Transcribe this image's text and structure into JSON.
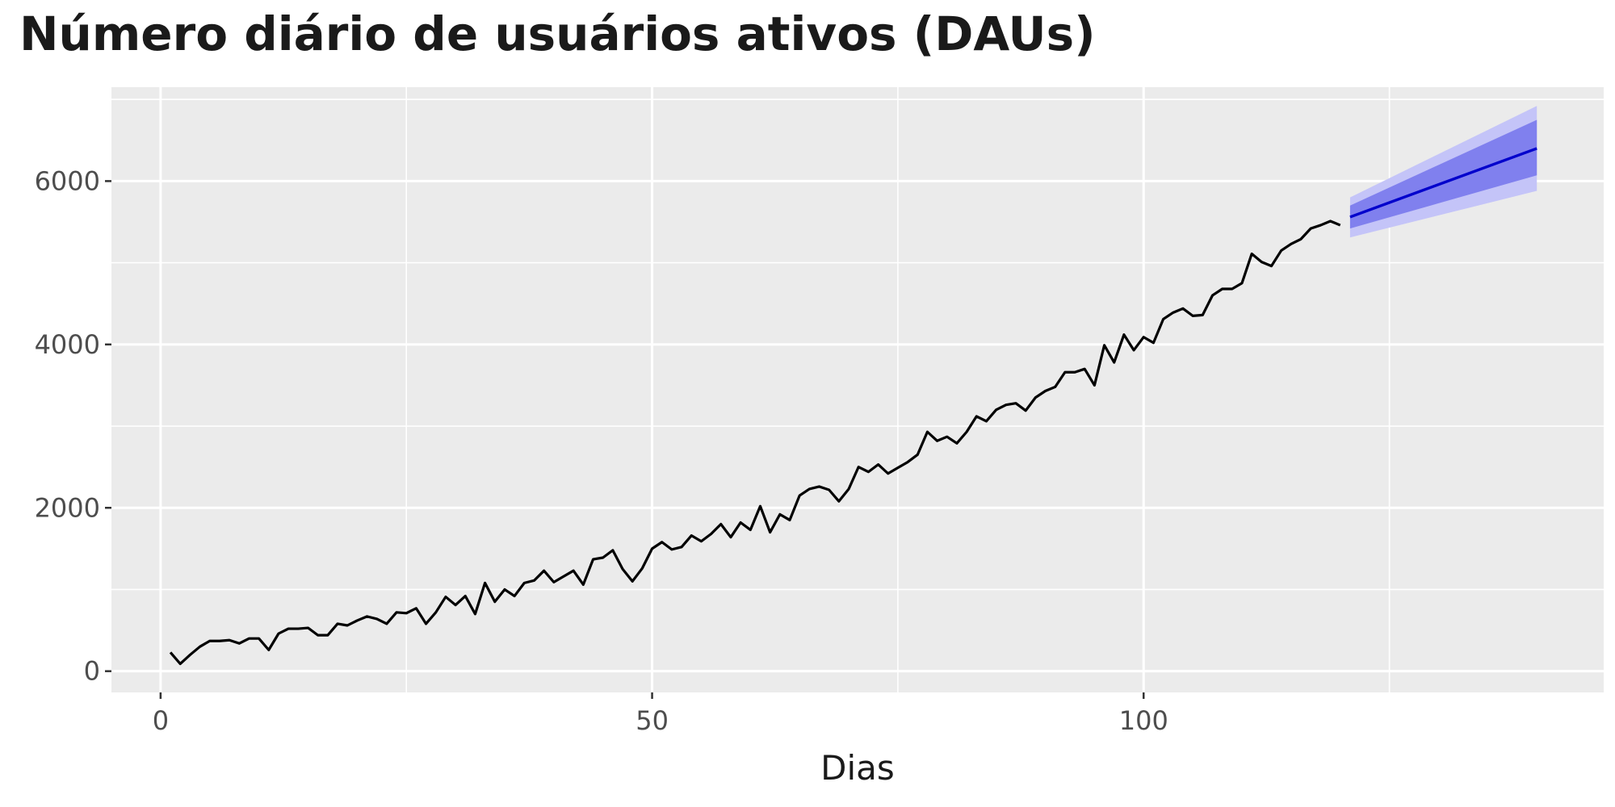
{
  "chart_data": {
    "type": "line",
    "title": "Número diário de usuários ativos (DAUs)",
    "xlabel": "Dias",
    "ylabel": "",
    "xlim": [
      -5.0,
      146.8
    ],
    "ylim": [
      -260,
      7150
    ],
    "x_ticks": [
      0,
      50,
      100
    ],
    "x_tick_labels": [
      "0",
      "50",
      "100"
    ],
    "x_minor_ticks": [
      25,
      75,
      125
    ],
    "y_ticks": [
      0,
      2000,
      4000,
      6000
    ],
    "y_tick_labels": [
      "0",
      "2000",
      "4000",
      "6000"
    ],
    "y_minor_ticks": [
      1000,
      3000,
      5000,
      7000
    ],
    "grid": true,
    "legend": "none",
    "colors": {
      "panel_background": "#ebebeb",
      "grid": "#ffffff",
      "observed_line": "#000000",
      "forecast_line": "#0000cc",
      "band_80": "#8080ee",
      "band_95": "#c4c4f8"
    },
    "series": [
      {
        "type": "line",
        "x": [
          1,
          2,
          3,
          4,
          5,
          6,
          7,
          8,
          9,
          10,
          11,
          12,
          13,
          14,
          15,
          16,
          17,
          18,
          19,
          20,
          21,
          22,
          23,
          24,
          25,
          26,
          27,
          28,
          29,
          30,
          31,
          32,
          33,
          34,
          35,
          36,
          37,
          38,
          39,
          40,
          41,
          42,
          43,
          44,
          45,
          46,
          47,
          48,
          49,
          50,
          51,
          52,
          53,
          54,
          55,
          56,
          57,
          58,
          59,
          60,
          61,
          62,
          63,
          64,
          65,
          66,
          67,
          68,
          69,
          70,
          71,
          72,
          73,
          74,
          75,
          76,
          77,
          78,
          79,
          80,
          81,
          82,
          83,
          84,
          85,
          86,
          87,
          88,
          89,
          90,
          91,
          92,
          93,
          94,
          95,
          96,
          97,
          98,
          99,
          100,
          101,
          102,
          103,
          104,
          105,
          106,
          107,
          108,
          109,
          110,
          111,
          112,
          113,
          114,
          115,
          116,
          117,
          118,
          119,
          120
        ],
        "values": [
          230,
          90,
          200,
          300,
          370,
          370,
          380,
          340,
          400,
          400,
          260,
          460,
          520,
          520,
          530,
          440,
          440,
          580,
          560,
          620,
          670,
          640,
          580,
          720,
          710,
          770,
          580,
          720,
          910,
          810,
          920,
          700,
          1080,
          850,
          1000,
          920,
          1080,
          1110,
          1230,
          1090,
          1160,
          1230,
          1060,
          1370,
          1390,
          1480,
          1250,
          1100,
          1260,
          1500,
          1580,
          1490,
          1520,
          1660,
          1590,
          1680,
          1800,
          1640,
          1820,
          1730,
          2020,
          1700,
          1920,
          1850,
          2150,
          2230,
          2260,
          2220,
          2080,
          2230,
          2500,
          2440,
          2530,
          2420,
          2490,
          2560,
          2650,
          2930,
          2820,
          2870,
          2790,
          2930,
          3120,
          3060,
          3200,
          3260,
          3280,
          3190,
          3350,
          3430,
          3480,
          3660,
          3660,
          3700,
          3500,
          3990,
          3780,
          4120,
          3930,
          4090,
          4020,
          4310,
          4390,
          4440,
          4350,
          4360,
          4600,
          4680,
          4680,
          4750,
          5110,
          5010,
          4960,
          5150,
          5230,
          5290,
          5420,
          5460,
          5510,
          5460
        ]
      },
      {
        "type": "forecast",
        "x": [
          121,
          140
        ],
        "mean": [
          5560,
          6400
        ],
        "lo80": [
          5420,
          6070
        ],
        "hi80": [
          5700,
          6750
        ],
        "lo95": [
          5310,
          5880
        ],
        "hi95": [
          5800,
          6920
        ]
      }
    ]
  }
}
